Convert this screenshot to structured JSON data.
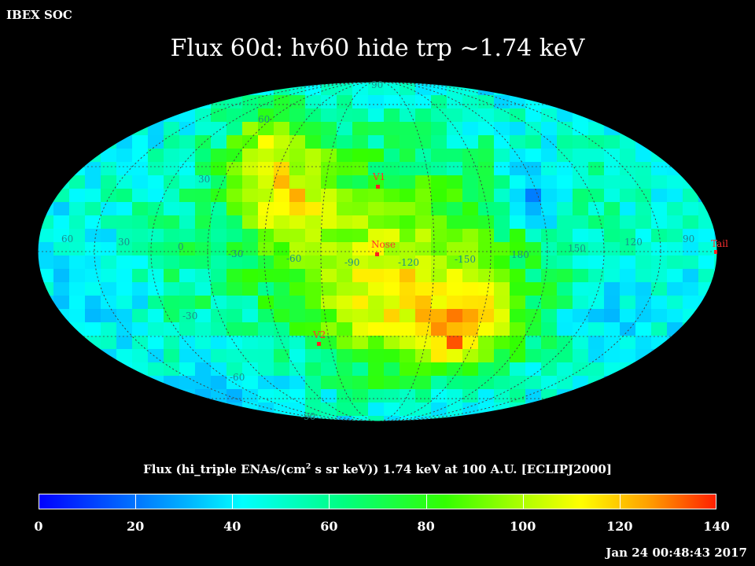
{
  "header": {
    "org_label": "IBEX SOC"
  },
  "title": "Flux   60d: hv60 hide trp ~1.74 keV",
  "map": {
    "projection": "Mollweide (ecliptic, J2000)",
    "lat_labels": [
      "60",
      "30",
      "-30",
      "-60",
      "90",
      "-90"
    ],
    "lon_labels": [
      "60",
      "30",
      "0",
      "-30",
      "-60",
      "-90",
      "-120",
      "-150",
      "180",
      "150",
      "120",
      "90"
    ],
    "markers": [
      {
        "id": "v1",
        "label": "V1"
      },
      {
        "id": "nose",
        "label": "Nose"
      },
      {
        "id": "v2",
        "label": "V2"
      },
      {
        "id": "tail",
        "label": "Tail"
      }
    ],
    "colors": {
      "marker": "#ff2020",
      "marker_label": "#ff3030",
      "grid_label": "#1c8c8c",
      "grid": "#404040"
    }
  },
  "colorbar": {
    "title_main": "Flux (hi_triple ENAs/(cm",
    "title_sup": "2",
    "title_rest": " s sr keV))  1.74 keV at 100 A.U. [ECLIPJ2000]",
    "min": 0,
    "max": 140,
    "ticks": [
      "0",
      "20",
      "40",
      "60",
      "80",
      "100",
      "120",
      "140"
    ],
    "colors": [
      "#0000ff",
      "#00b4ff",
      "#00ffff",
      "#00ff80",
      "#33ff00",
      "#a0ff00",
      "#ffff00",
      "#ffa000",
      "#ff2000"
    ]
  },
  "timestamp": "Jan 24 00:48:43 2017"
}
